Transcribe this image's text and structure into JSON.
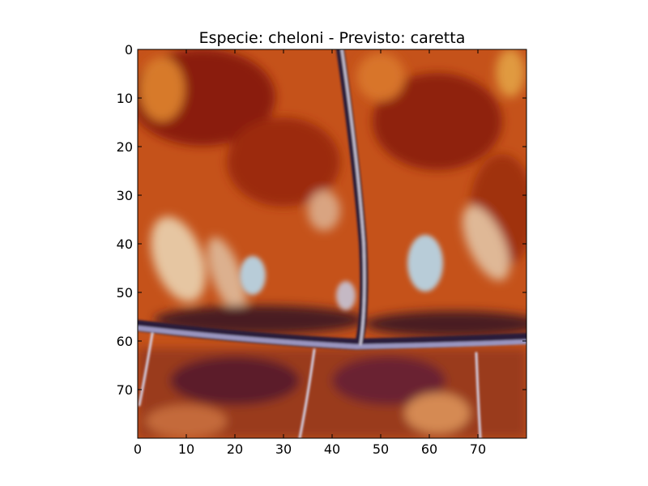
{
  "chart_data": {
    "type": "heatmap",
    "title": "Especie: cheloni - Previsto: caretta",
    "image_kind": "image",
    "xlim": [
      0,
      80
    ],
    "ylim": [
      80,
      0
    ],
    "y_axis_inverted": true,
    "x_ticks": [
      0,
      10,
      20,
      30,
      40,
      50,
      60,
      70
    ],
    "y_ticks": [
      0,
      10,
      20,
      30,
      40,
      50,
      60,
      70
    ],
    "x_tick_labels": [
      "0",
      "10",
      "20",
      "30",
      "40",
      "50",
      "60",
      "70"
    ],
    "y_tick_labels": [
      "0",
      "10",
      "20",
      "30",
      "40",
      "50",
      "60",
      "70"
    ],
    "grid": false,
    "colors": {
      "base_orange": "#c5521a",
      "dark_red": "#8a1e08",
      "pale_streak": "#e6c6a2",
      "pale_blue_spot": "#b8ccd8",
      "seam_light": "#c9c4d6",
      "seam_dark": "#2b1a3a",
      "lower_scute": "#9a3a1f"
    }
  }
}
